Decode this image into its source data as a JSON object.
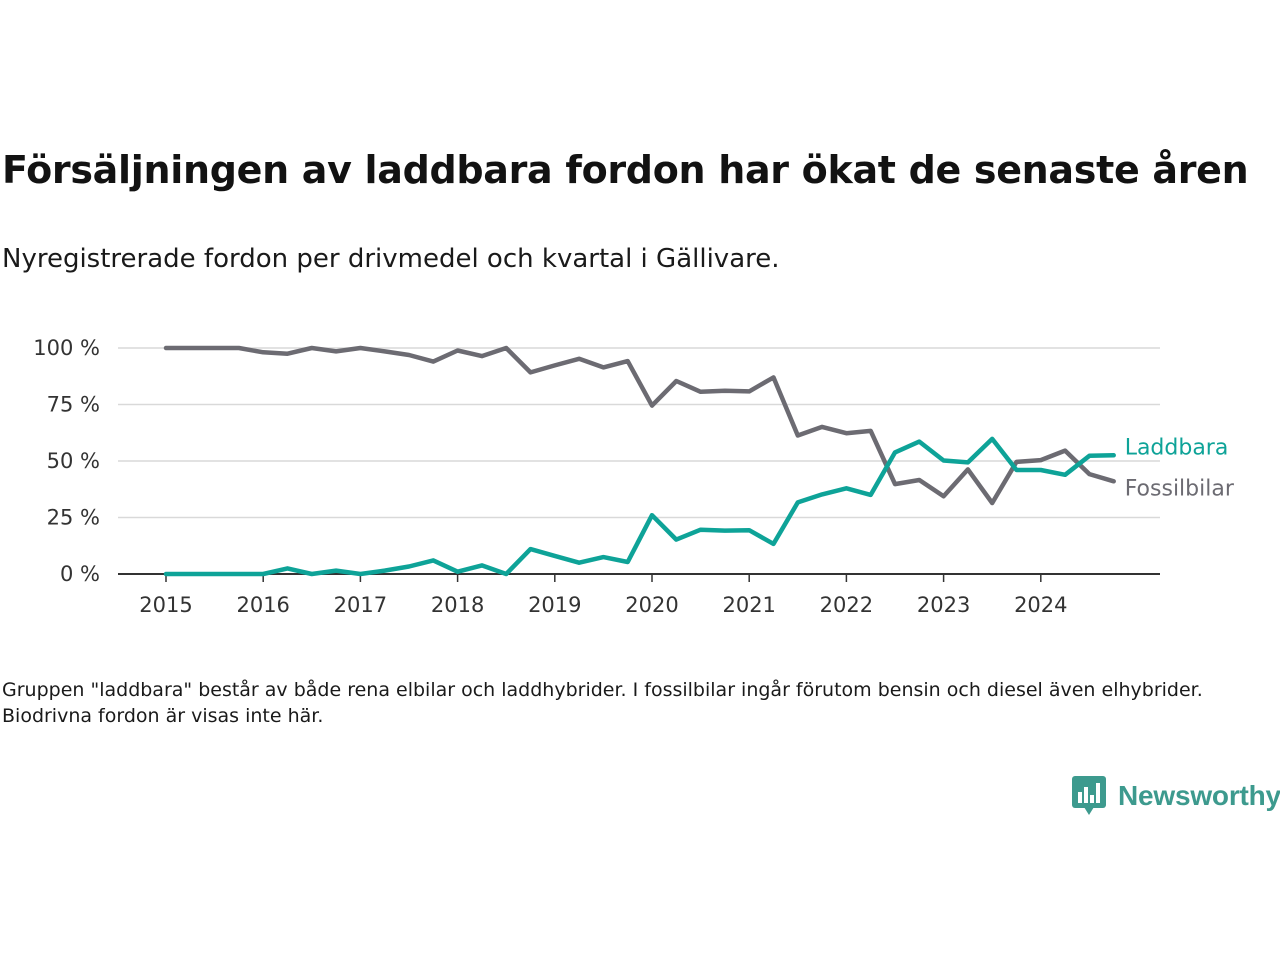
{
  "title": "Försäljningen av laddbara fordon har ökat de senaste åren",
  "subtitle": "Nyregistrerade fordon per drivmedel och kvartal i Gällivare.",
  "note": "Gruppen \"laddbara\" består av både rena elbilar och laddhybrider. I fossilbilar ingår förutom bensin och diesel även elhybrider. Biodrivna fordon är visas inte här.",
  "brand": {
    "name": "Newsworthy",
    "icon": "newsworthy-logo-icon",
    "color": "#3d9a8e"
  },
  "chart_data": {
    "type": "line",
    "x": [
      "2015Q1",
      "2015Q2",
      "2015Q3",
      "2015Q4",
      "2016Q1",
      "2016Q2",
      "2016Q3",
      "2016Q4",
      "2017Q1",
      "2017Q2",
      "2017Q3",
      "2017Q4",
      "2018Q1",
      "2018Q2",
      "2018Q3",
      "2018Q4",
      "2019Q1",
      "2019Q2",
      "2019Q3",
      "2019Q4",
      "2020Q1",
      "2020Q2",
      "2020Q3",
      "2020Q4",
      "2021Q1",
      "2021Q2",
      "2021Q3",
      "2021Q4",
      "2022Q1",
      "2022Q2",
      "2022Q3",
      "2022Q4",
      "2023Q1",
      "2023Q2",
      "2023Q3",
      "2023Q4",
      "2024Q1",
      "2024Q2",
      "2024Q3",
      "2024Q4"
    ],
    "x_tick_labels": [
      "2015",
      "2016",
      "2017",
      "2018",
      "2019",
      "2020",
      "2021",
      "2022",
      "2023",
      "2024"
    ],
    "y_tick_labels": [
      "0 %",
      "25 %",
      "50 %",
      "75 %",
      "100 %"
    ],
    "ylim": [
      0,
      100
    ],
    "grid": true,
    "legend": "inline at line ends",
    "series": [
      {
        "name": "Laddbara",
        "color": "#0ea398",
        "values": [
          0,
          0,
          0,
          0,
          0,
          2.5,
          0,
          1.5,
          0,
          1.5,
          3.3,
          6,
          1,
          3.8,
          0,
          11,
          8,
          5,
          7.5,
          5.3,
          26,
          15.2,
          19.6,
          19.2,
          19.4,
          13.3,
          31.7,
          35.2,
          37.9,
          35,
          53.8,
          58.6,
          50.2,
          49.4,
          59.8,
          46,
          46,
          43.9,
          52.3,
          52.5
        ]
      },
      {
        "name": "Fossilbilar",
        "color": "#6c6b72",
        "values": [
          100,
          100,
          100,
          100,
          98.1,
          97.5,
          100,
          98.5,
          100,
          98.5,
          96.9,
          94,
          98.9,
          96.4,
          100,
          89.2,
          92.3,
          95.2,
          91.4,
          94.2,
          74.5,
          85.4,
          80.6,
          81.1,
          80.8,
          87,
          61.3,
          65.1,
          62.3,
          63.3,
          39.8,
          41.6,
          34.4,
          46.3,
          31.4,
          49.6,
          50.4,
          54.6,
          44.2,
          41
        ]
      }
    ]
  }
}
